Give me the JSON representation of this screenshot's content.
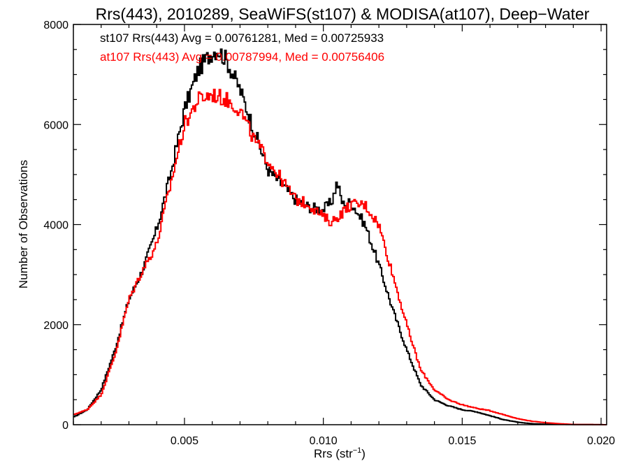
{
  "chart_data": {
    "type": "line",
    "step": true,
    "title": "Rrs(443), 2010289, SeaWiFS(st107) & MODISA(at107), Deep−Water",
    "xlabel": "Rrs (str",
    "xlabel_sup": "−1",
    "xlabel_end": ")",
    "ylabel": "Number of Observations",
    "xlim": [
      0.001,
      0.0202
    ],
    "ylim": [
      0,
      8000
    ],
    "xticks": [
      0.005,
      0.01,
      0.015,
      0.02
    ],
    "xtick_labels": [
      "0.005",
      "0.010",
      "0.015",
      "0.020"
    ],
    "yticks": [
      0,
      2000,
      4000,
      6000,
      8000
    ],
    "ytick_labels": [
      "0",
      "2000",
      "4000",
      "6000",
      "8000"
    ],
    "grid": false,
    "legend_position": "top-left",
    "series": [
      {
        "name": "st107 Rrs(443) Avg = 0.00761281, Med = 0.00725933",
        "color": "#000000",
        "x": [
          0.001,
          0.0015,
          0.002,
          0.0025,
          0.003,
          0.0035,
          0.004,
          0.0045,
          0.005,
          0.0055,
          0.006,
          0.0062,
          0.0065,
          0.007,
          0.0075,
          0.008,
          0.0085,
          0.009,
          0.0095,
          0.01,
          0.0103,
          0.0105,
          0.0107,
          0.011,
          0.0115,
          0.012,
          0.0125,
          0.013,
          0.0135,
          0.014,
          0.0145,
          0.015,
          0.0155,
          0.016,
          0.0165,
          0.017,
          0.0175,
          0.018,
          0.019,
          0.0202
        ],
        "y": [
          150,
          300,
          700,
          1500,
          2500,
          3100,
          3900,
          5000,
          6300,
          7100,
          7450,
          7500,
          7300,
          6700,
          5900,
          5100,
          4800,
          4500,
          4350,
          4300,
          4450,
          4850,
          4400,
          4450,
          4000,
          3200,
          2300,
          1500,
          800,
          500,
          380,
          300,
          260,
          180,
          100,
          50,
          20,
          10,
          5,
          0
        ]
      },
      {
        "name": "at107 Rrs(443) Avg = 0.00787994, Med = 0.00756406",
        "color": "#ff0000",
        "x": [
          0.001,
          0.0015,
          0.002,
          0.0025,
          0.003,
          0.0035,
          0.004,
          0.0045,
          0.005,
          0.0055,
          0.006,
          0.0065,
          0.007,
          0.0075,
          0.008,
          0.0085,
          0.009,
          0.0095,
          0.01,
          0.0103,
          0.0105,
          0.011,
          0.0115,
          0.012,
          0.0125,
          0.013,
          0.0135,
          0.014,
          0.0145,
          0.015,
          0.0155,
          0.016,
          0.0165,
          0.017,
          0.0175,
          0.018,
          0.0185,
          0.019,
          0.0202
        ],
        "y": [
          200,
          300,
          600,
          1400,
          2500,
          3100,
          3600,
          4800,
          6000,
          6500,
          6600,
          6500,
          6300,
          5700,
          5300,
          4900,
          4500,
          4400,
          4150,
          4050,
          4150,
          4400,
          4400,
          4000,
          3000,
          2000,
          1100,
          700,
          500,
          400,
          330,
          280,
          200,
          120,
          70,
          40,
          20,
          5,
          0
        ]
      }
    ]
  }
}
